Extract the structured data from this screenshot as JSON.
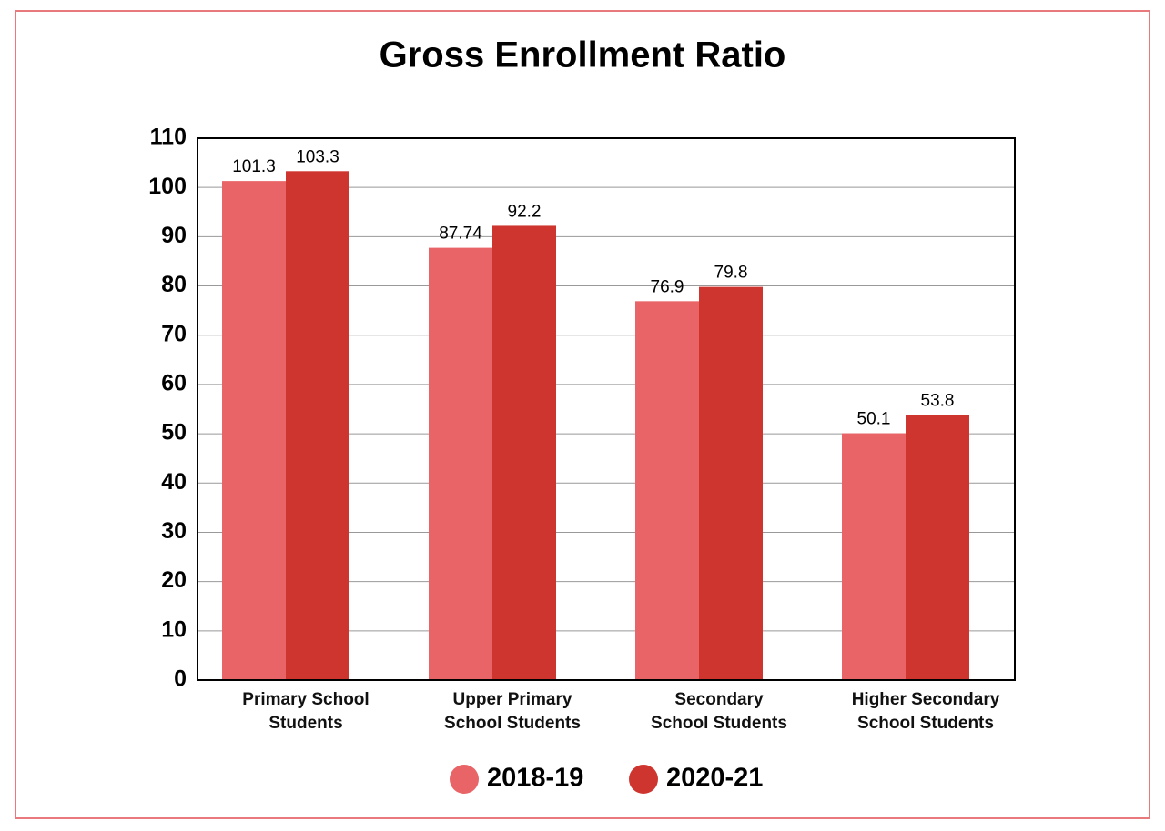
{
  "chart_data": {
    "type": "bar",
    "title": "Gross Enrollment Ratio",
    "categories": [
      "Primary School\nStudents",
      "Upper Primary\nSchool Students",
      "Secondary\nSchool Students",
      "Higher Secondary\nSchool Students"
    ],
    "series": [
      {
        "name": "2018-19",
        "color": "#e86467",
        "values": [
          101.3,
          87.74,
          76.9,
          50.1
        ]
      },
      {
        "name": "2020-21",
        "color": "#cf352f",
        "values": [
          103.3,
          92.2,
          79.8,
          53.8
        ]
      }
    ],
    "ylim": [
      0,
      110
    ],
    "yticks": [
      0,
      10,
      20,
      30,
      40,
      50,
      60,
      70,
      80,
      90,
      100,
      110
    ],
    "grid": true,
    "legend": "bottom"
  }
}
